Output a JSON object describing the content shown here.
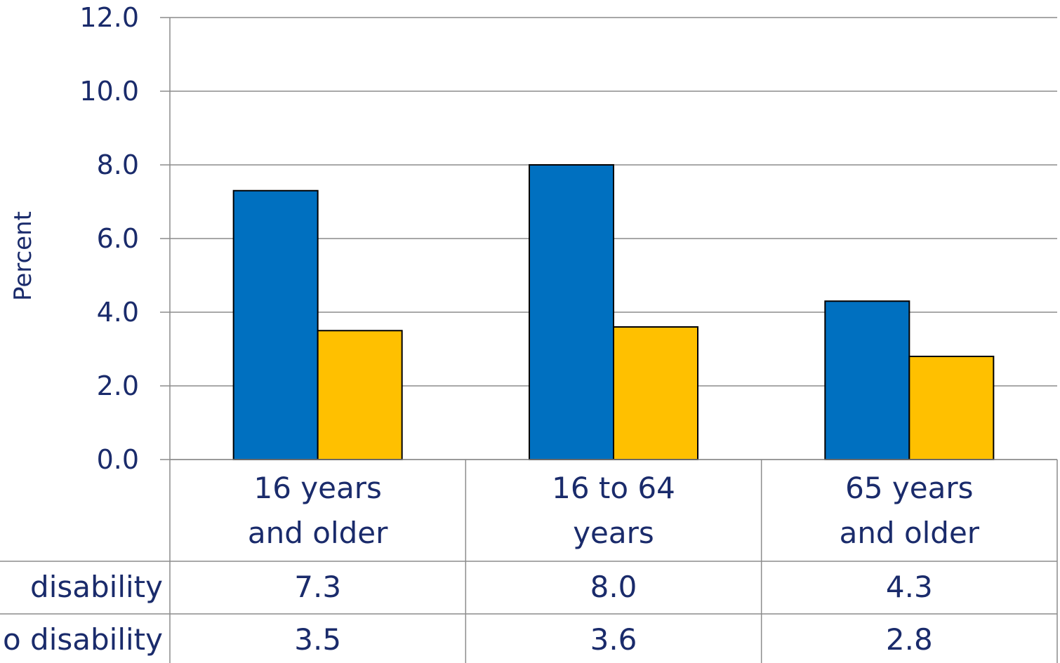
{
  "chart_data": {
    "type": "bar",
    "ylabel": "Percent",
    "ylim": [
      0,
      12
    ],
    "yticks": [
      "0.0",
      "2.0",
      "4.0",
      "6.0",
      "8.0",
      "10.0",
      "12.0"
    ],
    "ytick_values": [
      0,
      2,
      4,
      6,
      8,
      10,
      12
    ],
    "categories": [
      [
        "16 years",
        "and older"
      ],
      [
        "16 to 64",
        "years"
      ],
      [
        "65 years",
        "and older"
      ]
    ],
    "series": [
      {
        "name": "disability",
        "color": "#0070C0",
        "values": [
          7.3,
          8.0,
          4.3
        ],
        "labels": [
          "7.3",
          "8.0",
          "4.3"
        ]
      },
      {
        "name": "o disability",
        "color": "#FFC000",
        "values": [
          3.5,
          3.6,
          2.8
        ],
        "labels": [
          "3.5",
          "3.6",
          "2.8"
        ]
      }
    ],
    "grid": true,
    "data_table": true
  }
}
